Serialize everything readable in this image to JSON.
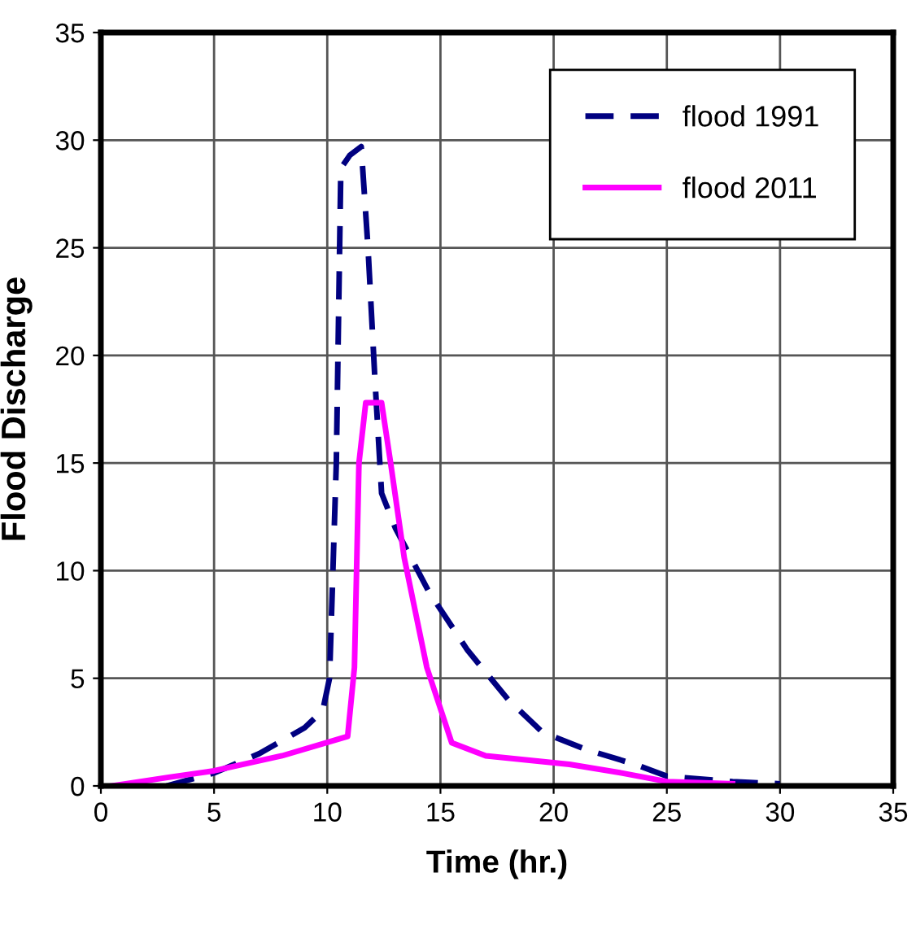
{
  "chart_data": {
    "type": "line",
    "xlabel": "Time (hr.)",
    "ylabel": "Flood Discharge",
    "xlim": [
      0,
      35
    ],
    "ylim": [
      0,
      35
    ],
    "xticks": [
      0,
      5,
      10,
      15,
      20,
      25,
      30,
      35
    ],
    "yticks": [
      0,
      5,
      10,
      15,
      20,
      25,
      30,
      35
    ],
    "grid": true,
    "legend": "top right",
    "marker": "none",
    "series": [
      {
        "name": "flood 1991",
        "color": "#000080",
        "line_style": "dashed",
        "x": [
          2.9,
          5,
          7,
          9,
          9.8,
          10.1,
          10.4,
          10.6,
          11,
          11.5,
          11.8,
          12.1,
          12.4,
          13,
          13.7,
          14.5,
          16.2,
          18,
          19.5,
          21.4,
          23.6,
          25,
          27.9,
          30
        ],
        "values": [
          0,
          0.6,
          1.5,
          2.7,
          3.5,
          5,
          15,
          28.7,
          29.3,
          29.7,
          25,
          19,
          13.6,
          12,
          10.6,
          9,
          6.3,
          4,
          2.5,
          1.7,
          1,
          0.45,
          0.2,
          0.1
        ]
      },
      {
        "name": "flood 2011",
        "color": "#ff00ff",
        "line_style": "solid",
        "x": [
          0.5,
          3,
          5,
          8,
          10.9,
          11.2,
          11.4,
          11.7,
          12.4,
          12.8,
          13.4,
          14.4,
          15.5,
          17,
          20.7,
          23,
          25,
          27.9
        ],
        "values": [
          0,
          0.4,
          0.7,
          1.4,
          2.3,
          5.5,
          15,
          17.8,
          17.8,
          15,
          10.6,
          5.5,
          2,
          1.4,
          1,
          0.6,
          0.2,
          0.1
        ]
      }
    ]
  }
}
